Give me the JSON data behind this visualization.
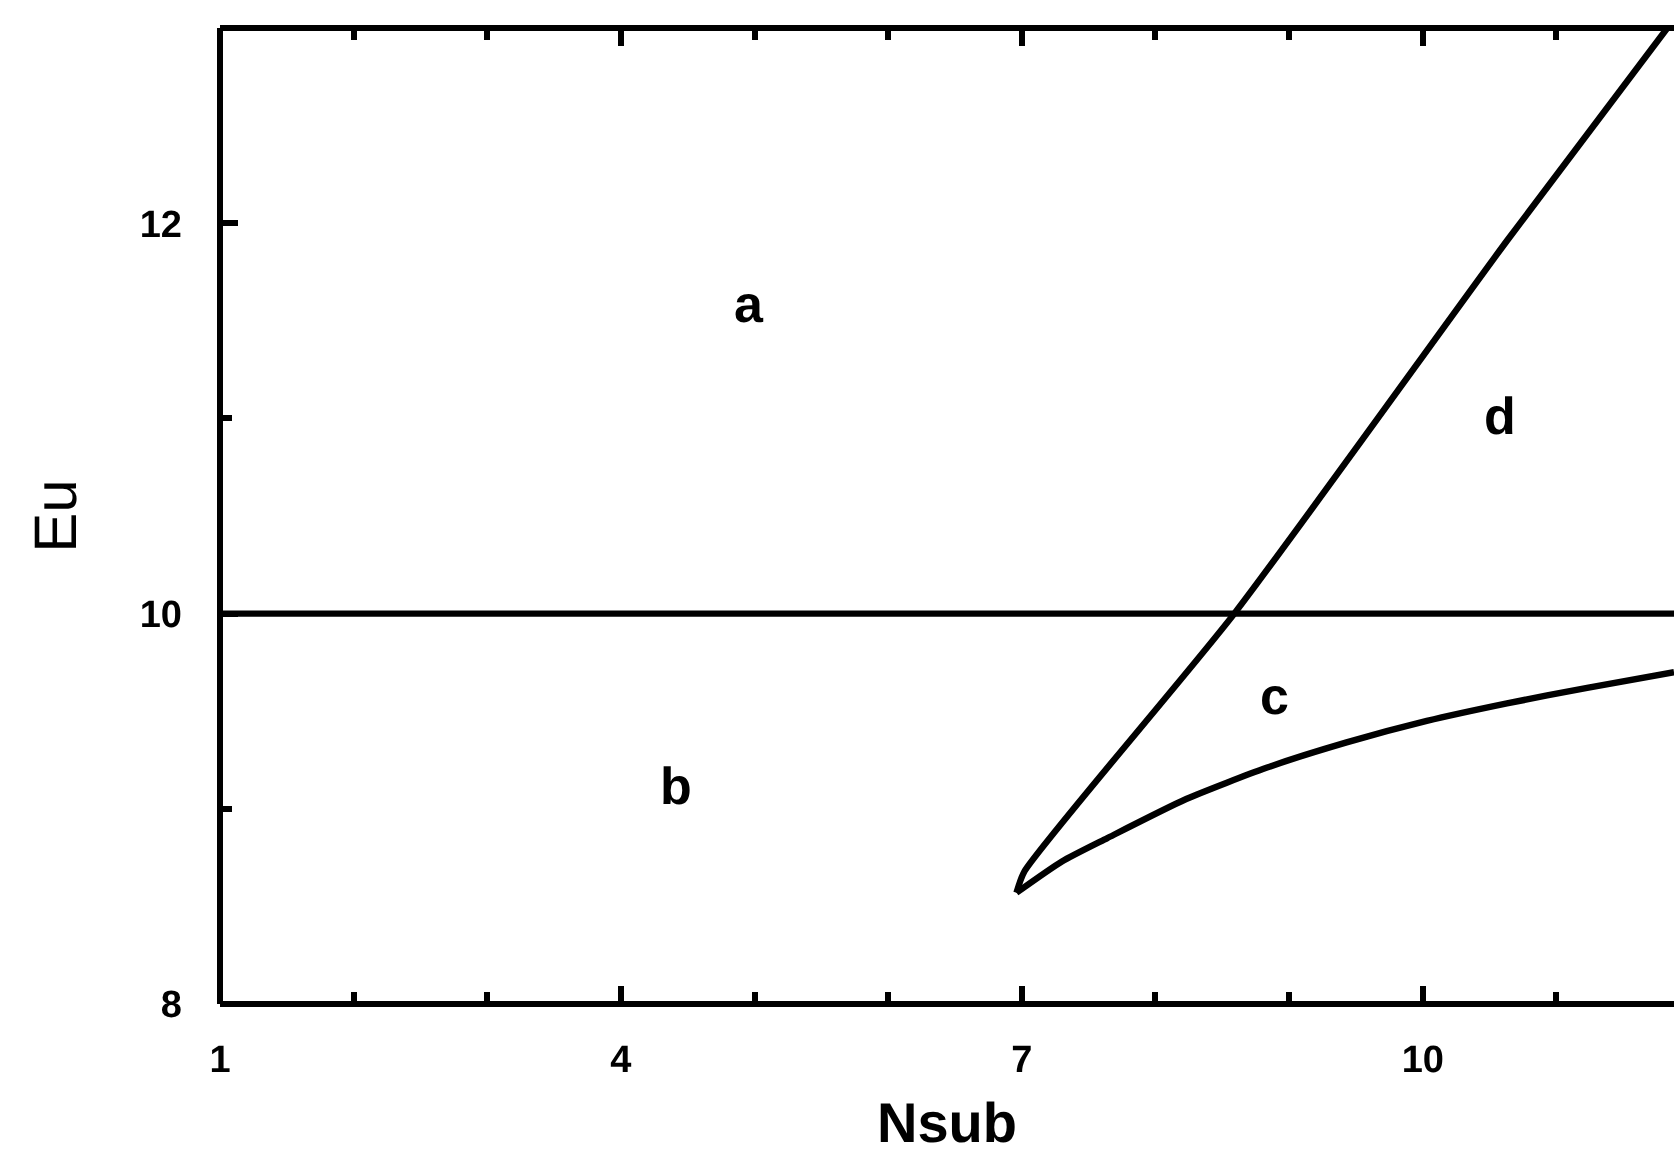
{
  "chart_data": {
    "type": "line",
    "xlabel": "Nsub",
    "ylabel": "Eu",
    "xlim": [
      1,
      11.88
    ],
    "ylim": [
      8,
      13
    ],
    "xticks": [
      1,
      {
        "value": 2,
        "label": null
      },
      {
        "value": 3,
        "label": null
      },
      4,
      {
        "value": 5,
        "label": null
      },
      {
        "value": 6,
        "label": null
      },
      7,
      {
        "value": 8,
        "label": null
      },
      {
        "value": 9,
        "label": null
      },
      10,
      {
        "value": 11,
        "label": null
      }
    ],
    "yticks": [
      8,
      {
        "value": 9,
        "label": null
      },
      10,
      {
        "value": 11,
        "label": null
      },
      12
    ],
    "grid": false,
    "marker": "none",
    "line_style": "solid",
    "series": [
      {
        "color": "#000000",
        "x": [
          1,
          11.88
        ],
        "values": [
          10,
          10
        ]
      },
      {
        "color": "#000000",
        "x": [
          6.96,
          7.02,
          8.59,
          10.63,
          11.83
        ],
        "values": [
          8.57,
          8.68,
          10.0,
          11.91,
          13.0
        ]
      },
      {
        "color": "#000000",
        "x": [
          6.96,
          7.3,
          7.64,
          8.23,
          8.83,
          9.43,
          10.03,
          10.63,
          11.23,
          11.88
        ],
        "values": [
          8.57,
          8.73,
          8.85,
          9.05,
          9.21,
          9.34,
          9.45,
          9.54,
          9.62,
          9.7
        ]
      }
    ],
    "annotations": [
      "a",
      "b",
      "c",
      "d"
    ]
  }
}
